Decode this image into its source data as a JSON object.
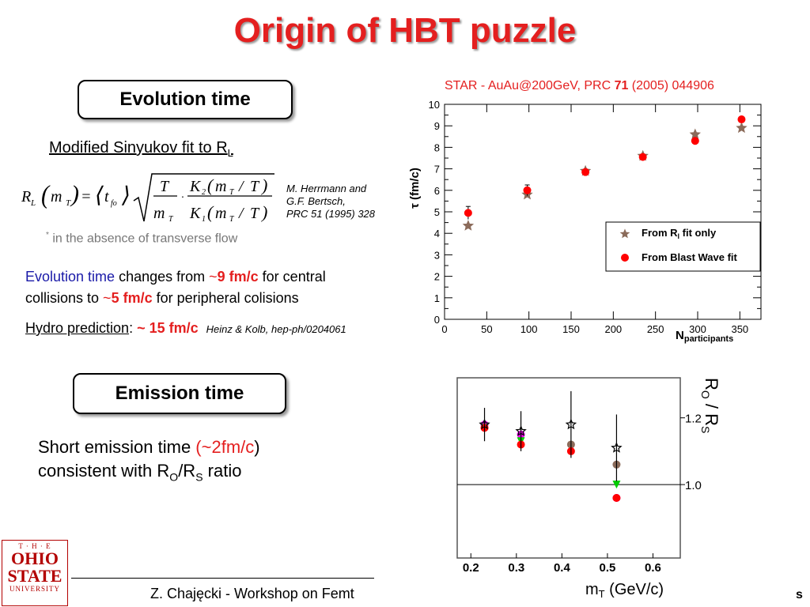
{
  "title": "Origin of HBT puzzle",
  "evolution": {
    "box_label": "Evolution time",
    "fit_label": "Modified Sinyukov fit to R",
    "fit_sub": "L",
    "citation": [
      "M. Herrmann and",
      "G.F. Bertsch,",
      "PRC 51 (1995) 328"
    ],
    "note_star": "*",
    "note": " in the absence of transverse flow",
    "text_line1": {
      "a": "Evolution time",
      "b": " changes from ",
      "c": "~",
      "d": "9 fm/c",
      "e": " for central"
    },
    "text_line2": {
      "a": "collisions to ",
      "b": "~",
      "c": "5 fm/c",
      "d": " for peripheral colisions"
    },
    "hydro": {
      "a": "Hydro prediction",
      "b": ": ",
      "c": "~ 15 fm/c",
      "d": "Heinz & Kolb, hep-ph/0204061"
    }
  },
  "emission": {
    "box_label": "Emission time",
    "line1_a": "Short emission time ",
    "line1_b": "(~2fm/c",
    "line1_c": ")",
    "line2_a": "consistent with R",
    "line2_sub1": "O",
    "line2_b": "/R",
    "line2_sub2": "S",
    "line2_c": " ratio"
  },
  "chart1_caption": {
    "a": "STAR - AuAu@200GeV, PRC ",
    "b": "71",
    "c": " (2005) 044906"
  },
  "footer": "Z. Chajęcki - Workshop on Femt",
  "footer_right": "s",
  "logo": {
    "top": "T · H · E",
    "l1": "OHIO",
    "l2": "STATE",
    "l3": "UNIVERSITY"
  },
  "chart_data": [
    {
      "type": "scatter",
      "ylabel": "τ (fm/c)",
      "xlabel": "N",
      "xlabel_sub": "participants",
      "xlim": [
        0,
        375
      ],
      "ylim": [
        0,
        10
      ],
      "xticks": [
        "0",
        "50",
        "100",
        "150",
        "200",
        "250",
        "300",
        "350"
      ],
      "yticks": [
        "0",
        "1",
        "2",
        "3",
        "4",
        "5",
        "6",
        "7",
        "8",
        "9",
        "10"
      ],
      "legend_position": "right",
      "series": [
        {
          "name": "From R",
          "name_sub": "l",
          "name_rest": " fit only",
          "color": "#8b6b5a",
          "marker": "star",
          "x": [
            28,
            98,
            167,
            235,
            297,
            352
          ],
          "y": [
            4.35,
            5.8,
            6.9,
            7.6,
            8.6,
            8.9
          ]
        },
        {
          "name": "From Blast Wave fit",
          "color": "#ff0000",
          "marker": "circle",
          "x": [
            28,
            98,
            167,
            235,
            297,
            352
          ],
          "y": [
            4.95,
            6.0,
            6.85,
            7.55,
            8.3,
            9.3
          ],
          "err": [
            0.3,
            0.25,
            0.1,
            0.1,
            0.1,
            0.1
          ]
        }
      ]
    },
    {
      "type": "scatter",
      "ylabel": "R",
      "ylabel_sub1": "O",
      "ylabel_mid": " / R",
      "ylabel_sub2": "S",
      "xlabel": "m",
      "xlabel_sub": "T",
      "xlabel_rest": " (GeV/c)",
      "xlim": [
        0.17,
        0.66
      ],
      "ylim": [
        0.78,
        1.32
      ],
      "xticks": [
        "0.2",
        "0.3",
        "0.4",
        "0.5",
        "0.6"
      ],
      "yticks": [
        "1.2",
        "1.0"
      ],
      "reference_line": 1.0,
      "x_positions": [
        0.23,
        0.31,
        0.42,
        0.52
      ],
      "series": [
        {
          "name": "",
          "color": "#ee00ee",
          "marker": "circle",
          "y": [
            1.18,
            1.15,
            null,
            0.96
          ]
        },
        {
          "name": "",
          "color": "#8b6b5a",
          "marker": "circle",
          "y": [
            null,
            null,
            1.12,
            1.06
          ]
        },
        {
          "name": "",
          "color": "#00cc00",
          "marker": "triangle",
          "y": [
            1.17,
            1.13,
            null,
            1.0
          ]
        },
        {
          "name": "",
          "color": "#ff0000",
          "marker": "circle",
          "y": [
            1.17,
            1.12,
            1.1,
            0.96
          ]
        },
        {
          "name": "",
          "color": "#000000",
          "marker": "star",
          "y": [
            1.18,
            1.16,
            1.18,
            1.11
          ],
          "err": [
            0.05,
            0.06,
            0.1,
            0.1
          ]
        }
      ]
    }
  ]
}
